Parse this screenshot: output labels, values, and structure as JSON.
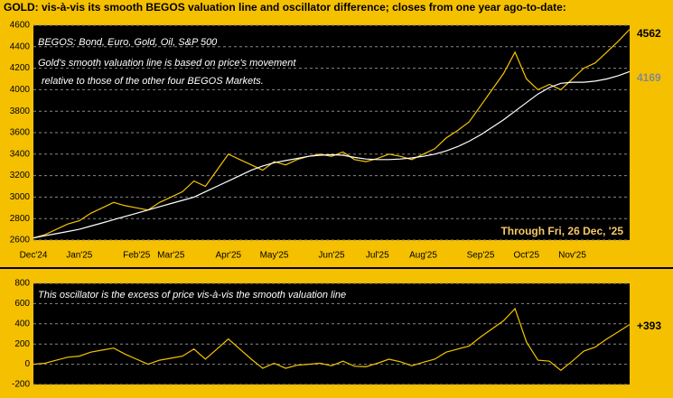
{
  "chart_data": [
    {
      "type": "line",
      "title": "GOLD:  vis-à-vis its smooth BEGOS valuation line and oscillator difference; closes from one year ago-to-date:",
      "annotations": [
        "BEGOS:  Bond, Euro, Gold, Oil, S&P 500",
        "Gold's smooth valuation line is based on price's movement",
        "relative to those of the other four BEGOS Markets.",
        "Through Fri, 26 Dec, '25"
      ],
      "categories": [
        "Dec'24",
        null,
        null,
        null,
        "Jan'25",
        null,
        null,
        null,
        null,
        "Feb'25",
        null,
        null,
        "Mar'25",
        null,
        null,
        null,
        null,
        "Apr'25",
        null,
        null,
        null,
        "May'25",
        null,
        null,
        null,
        null,
        "Jun'25",
        null,
        null,
        null,
        "Jul'25",
        null,
        null,
        null,
        "Aug'25",
        null,
        null,
        null,
        null,
        "Sep'25",
        null,
        null,
        null,
        "Oct'25",
        null,
        null,
        null,
        "Nov'25",
        null,
        null,
        null,
        null,
        null
      ],
      "series": [
        {
          "color": "#f5c400",
          "values": [
            2620,
            2650,
            2700,
            2750,
            2780,
            2850,
            2900,
            2950,
            2920,
            2900,
            2880,
            2950,
            3000,
            3050,
            3150,
            3100,
            3250,
            3400,
            3350,
            3300,
            3250,
            3330,
            3300,
            3350,
            3380,
            3400,
            3380,
            3420,
            3350,
            3330,
            3360,
            3400,
            3380,
            3350,
            3400,
            3450,
            3550,
            3620,
            3700,
            3850,
            4000,
            4150,
            4350,
            4100,
            4000,
            4050,
            4000,
            4100,
            4200,
            4250,
            4350,
            4450,
            4562
          ]
        },
        {
          "color": "#ffffff",
          "values": [
            2620,
            2640,
            2660,
            2680,
            2700,
            2730,
            2760,
            2790,
            2820,
            2850,
            2880,
            2910,
            2940,
            2970,
            3000,
            3050,
            3100,
            3150,
            3200,
            3250,
            3290,
            3320,
            3340,
            3360,
            3380,
            3390,
            3395,
            3390,
            3370,
            3355,
            3350,
            3350,
            3355,
            3365,
            3380,
            3400,
            3430,
            3470,
            3520,
            3580,
            3650,
            3720,
            3800,
            3880,
            3960,
            4020,
            4060,
            4070,
            4070,
            4080,
            4100,
            4130,
            4169
          ]
        }
      ],
      "ylim": [
        2600,
        4600
      ],
      "yticks": [
        2600,
        2800,
        3000,
        3200,
        3400,
        3600,
        3800,
        4000,
        4200,
        4400,
        4600
      ],
      "grid": true
    },
    {
      "type": "line",
      "annotations": [
        "This oscillator is the excess of price vis-à-vis the smooth valuation line"
      ],
      "series": [
        {
          "color": "#f5c400",
          "values": [
            0,
            10,
            40,
            70,
            80,
            120,
            140,
            160,
            100,
            50,
            0,
            40,
            60,
            80,
            150,
            50,
            150,
            250,
            150,
            50,
            -40,
            10,
            -40,
            -10,
            0,
            10,
            -15,
            30,
            -20,
            -25,
            10,
            50,
            25,
            -15,
            20,
            50,
            120,
            150,
            180,
            270,
            350,
            430,
            550,
            220,
            40,
            30,
            -60,
            30,
            130,
            170,
            250,
            320,
            393
          ],
          "value_labels": [
            null,
            null,
            null,
            null,
            null,
            null,
            null,
            null,
            null,
            null,
            null,
            null,
            null,
            null,
            null,
            null,
            null,
            null,
            null,
            null,
            null,
            null,
            null,
            null,
            null,
            null,
            null,
            null,
            null,
            null,
            null,
            null,
            null,
            null,
            null,
            null,
            null,
            null,
            null,
            null,
            null,
            null,
            null,
            null,
            null,
            null,
            null,
            null,
            null,
            null,
            null,
            null,
            "+393"
          ]
        }
      ],
      "ylim": [
        -200,
        800
      ],
      "yticks": [
        -200,
        0,
        200,
        400,
        600,
        800
      ],
      "grid": true
    }
  ]
}
